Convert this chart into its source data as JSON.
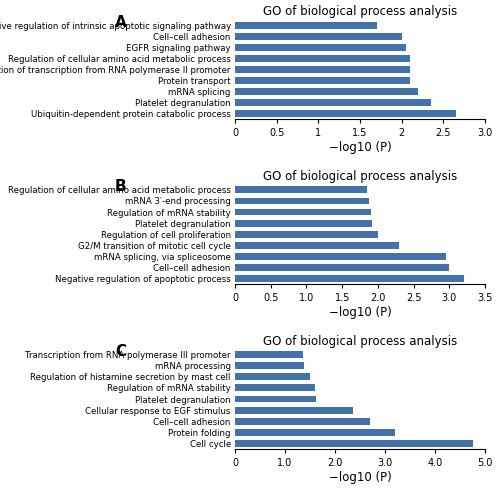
{
  "panel_A": {
    "title": "GO of biological process analysis",
    "categories": [
      "Negative regulation of intrinsic apoptotic signaling pathway",
      "Cell–cell adhesion",
      "EGFR signaling pathway",
      "Regulation of cellular amino acid metabolic process",
      "Regulation of transcription from RNA polymerase II promoter",
      "Protein transport",
      "mRNA splicing",
      "Platelet degranulation",
      "Ubiquitin-dependent protein catabolic process"
    ],
    "values": [
      1.7,
      2.0,
      2.05,
      2.1,
      2.1,
      2.1,
      2.2,
      2.35,
      2.65
    ],
    "xlim": [
      0,
      3.0
    ],
    "xticks": [
      0,
      0.5,
      1,
      1.5,
      2,
      2.5,
      3.0
    ],
    "xtick_labels": [
      "0",
      "0.5",
      "1",
      "1.5",
      "2",
      "2.5",
      "3.0"
    ],
    "xlabel": "−log10 (P)"
  },
  "panel_B": {
    "title": "GO of biological process analysis",
    "categories": [
      "Regulation of cellular amino acid metabolic process",
      "mRNA 3′-end processing",
      "Regulation of mRNA stability",
      "Platelet degranulation",
      "Regulation of cell proliferation",
      "G2/M transition of mitotic cell cycle",
      "mRNA splicing, via spliceosome",
      "Cell–cell adhesion",
      "Negative regulation of apoptotic process"
    ],
    "values": [
      1.85,
      1.88,
      1.9,
      1.92,
      2.0,
      2.3,
      2.95,
      3.0,
      3.2
    ],
    "xlim": [
      0,
      3.5
    ],
    "xticks": [
      0,
      0.5,
      1.0,
      1.5,
      2.0,
      2.5,
      3.0,
      3.5
    ],
    "xtick_labels": [
      "0",
      "0.5",
      "1.0",
      "1.5",
      "2.0",
      "2.5",
      "3.0",
      "3.5"
    ],
    "xlabel": "−log10 (P)"
  },
  "panel_C": {
    "title": "GO of biological process analysis",
    "categories": [
      "Transcription from RNA polymerase III promoter",
      "mRNA processing",
      "Regulation of histamine secretion by mast cell",
      "Regulation of mRNA stability",
      "Platelet degranulation",
      "Cellular response to EGF stimulus",
      "Cell–cell adhesion",
      "Protein folding",
      "Cell cycle"
    ],
    "values": [
      1.35,
      1.38,
      1.5,
      1.6,
      1.62,
      2.35,
      2.7,
      3.2,
      4.75
    ],
    "xlim": [
      0,
      5.0
    ],
    "xticks": [
      0,
      1.0,
      2.0,
      3.0,
      4.0,
      5.0
    ],
    "xtick_labels": [
      "0",
      "1.0",
      "2.0",
      "3.0",
      "4.0",
      "5.0"
    ],
    "xlabel": "−log10 (P)"
  },
  "bar_color": "#4472a8",
  "bar_height": 0.62,
  "label_fontsize": 6.2,
  "title_fontsize": 8.5,
  "xlabel_fontsize": 8.5,
  "tick_fontsize": 7,
  "panel_labels": [
    "A",
    "B",
    "C"
  ],
  "figure_bg": "#ffffff"
}
